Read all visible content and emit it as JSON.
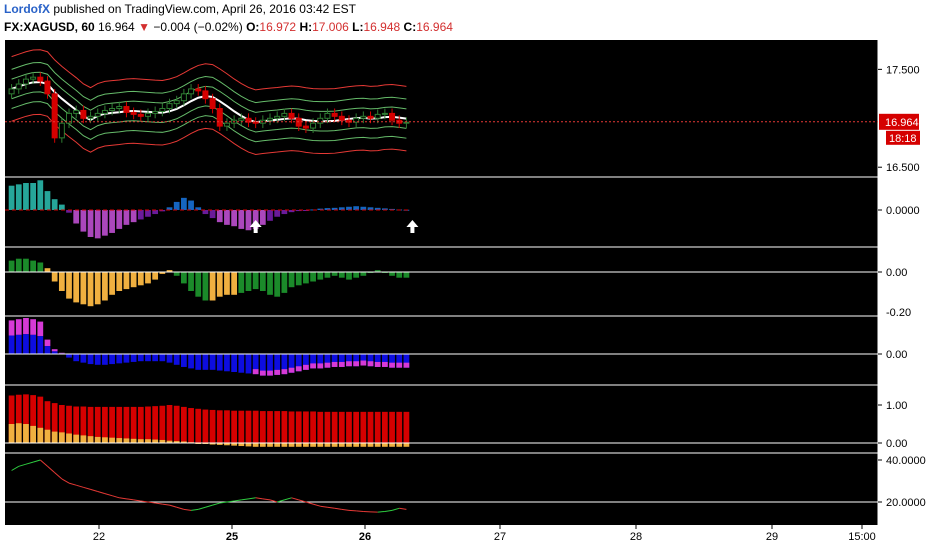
{
  "header": {
    "author": "LordofX",
    "published_text": "published on TradingView.com, April 26, 2016 03:42 EST",
    "symbol": "FX:XAGUSD, 60",
    "last": "16.964",
    "change": "−0.004 (−0.02%)",
    "open_label": "O:",
    "open": "16.972",
    "high_label": "H:",
    "high": "17.006",
    "low_label": "L:",
    "low": "16.948",
    "close_label": "C:",
    "close": "16.964"
  },
  "colors": {
    "background": "#000000",
    "up_candle": "#2e7d32",
    "down_candle": "#d50000",
    "band_outer": "#e53935",
    "band_inner": "#66bb6a",
    "band_mid": "#ffffff",
    "price_line": "#e53935",
    "hist_teal": "#26a69a",
    "hist_blue": "#1565c0",
    "hist_purple": "#ab47bc",
    "hist_dark_purple": "#6a1b9a",
    "green_bar": "#1b8a2a",
    "orange_bar": "#f0b040",
    "magenta_bar": "#d63ad6",
    "blue_bar": "#0d0de0",
    "red_bar": "#d50000",
    "line_green": "#2ecc40",
    "line_red": "#e53935"
  },
  "chart_data": {
    "type": "line",
    "instrument": "FX:XAGUSD",
    "interval": "60",
    "x_ticks": [
      "22",
      "25",
      "26",
      "27",
      "28",
      "29",
      "15:00"
    ],
    "price_panel": {
      "y_ticks": [
        "17.500",
        "16.500"
      ],
      "last_price": "16.964",
      "countdown": "18:18",
      "closes": [
        17.3,
        17.35,
        17.4,
        17.42,
        17.38,
        17.25,
        16.8,
        16.95,
        17.05,
        17.08,
        17.0,
        17.02,
        17.05,
        17.08,
        17.1,
        17.12,
        17.06,
        17.04,
        17.02,
        17.05,
        17.07,
        17.1,
        17.15,
        17.18,
        17.25,
        17.3,
        17.28,
        17.2,
        17.1,
        16.92,
        16.95,
        16.98,
        17.0,
        16.96,
        16.95,
        16.98,
        17.0,
        17.02,
        17.05,
        17.0,
        16.92,
        16.9,
        16.95,
        17.0,
        17.05,
        17.02,
        16.98,
        16.96,
        17.0,
        17.02,
        17.0,
        17.04,
        17.05,
        16.98,
        16.95,
        16.96
      ]
    },
    "osc1": {
      "y_ticks": [
        "0.0000"
      ],
      "values": [
        0.9,
        0.95,
        1.0,
        1.0,
        1.1,
        0.7,
        0.4,
        0.2,
        -0.1,
        -0.5,
        -0.8,
        -1.0,
        -1.05,
        -0.95,
        -0.85,
        -0.7,
        -0.55,
        -0.45,
        -0.35,
        -0.25,
        -0.15,
        -0.05,
        0.1,
        0.3,
        0.45,
        0.35,
        0.1,
        -0.15,
        -0.3,
        -0.45,
        -0.55,
        -0.6,
        -0.7,
        -0.75,
        -0.7,
        -0.55,
        -0.4,
        -0.25,
        -0.15,
        -0.08,
        -0.04,
        -0.02,
        0.02,
        0.05,
        0.07,
        0.08,
        0.1,
        0.12,
        0.14,
        0.12,
        0.1,
        0.08,
        0.06,
        0.04,
        0.02,
        0.01
      ]
    },
    "osc2": {
      "y_ticks": [
        "0.00",
        "-0.20"
      ],
      "values": [
        0.06,
        0.07,
        0.07,
        0.06,
        0.05,
        0.02,
        -0.05,
        -0.1,
        -0.14,
        -0.16,
        -0.17,
        -0.18,
        -0.17,
        -0.15,
        -0.12,
        -0.1,
        -0.09,
        -0.08,
        -0.07,
        -0.06,
        -0.04,
        -0.01,
        0.01,
        -0.02,
        -0.06,
        -0.1,
        -0.13,
        -0.15,
        -0.15,
        -0.13,
        -0.12,
        -0.12,
        -0.11,
        -0.1,
        -0.09,
        -0.1,
        -0.12,
        -0.13,
        -0.11,
        -0.08,
        -0.07,
        -0.06,
        -0.05,
        -0.04,
        -0.03,
        -0.02,
        -0.03,
        -0.04,
        -0.03,
        -0.02,
        0.0,
        0.01,
        0.0,
        -0.02,
        -0.03,
        -0.03
      ]
    },
    "osc3": {
      "y_ticks": [
        "0.00"
      ],
      "values": [
        1.4,
        1.45,
        1.5,
        1.45,
        1.35,
        0.6,
        0.2,
        0.05,
        -0.05,
        -0.1,
        -0.12,
        -0.14,
        -0.15,
        -0.15,
        -0.14,
        -0.13,
        -0.12,
        -0.11,
        -0.1,
        -0.1,
        -0.1,
        -0.1,
        -0.12,
        -0.15,
        -0.18,
        -0.2,
        -0.22,
        -0.22,
        -0.22,
        -0.23,
        -0.24,
        -0.25,
        -0.26,
        -0.27,
        -0.28,
        -0.3,
        -0.3,
        -0.29,
        -0.28,
        -0.26,
        -0.24,
        -0.22,
        -0.2,
        -0.2,
        -0.19,
        -0.18,
        -0.18,
        -0.17,
        -0.17,
        -0.16,
        -0.17,
        -0.18,
        -0.18,
        -0.19,
        -0.19,
        -0.19
      ]
    },
    "osc4": {
      "y_ticks": [
        "1.00",
        "0.00"
      ],
      "red_values": [
        1.25,
        1.27,
        1.28,
        1.26,
        1.22,
        1.1,
        1.05,
        1.0,
        0.98,
        0.96,
        0.96,
        0.95,
        0.95,
        0.95,
        0.95,
        0.95,
        0.95,
        0.95,
        0.95,
        0.96,
        0.97,
        0.98,
        1.0,
        0.98,
        0.95,
        0.92,
        0.9,
        0.88,
        0.87,
        0.86,
        0.86,
        0.85,
        0.85,
        0.85,
        0.85,
        0.84,
        0.84,
        0.84,
        0.84,
        0.83,
        0.83,
        0.83,
        0.83,
        0.82,
        0.82,
        0.82,
        0.82,
        0.82,
        0.82,
        0.82,
        0.82,
        0.82,
        0.82,
        0.82,
        0.82,
        0.82
      ],
      "orange_values": [
        0.5,
        0.52,
        0.5,
        0.45,
        0.4,
        0.35,
        0.3,
        0.28,
        0.25,
        0.22,
        0.2,
        0.18,
        0.16,
        0.15,
        0.14,
        0.13,
        0.12,
        0.11,
        0.1,
        0.1,
        0.09,
        0.08,
        0.06,
        0.05,
        0.04,
        0.02,
        0.0,
        -0.02,
        -0.04,
        -0.05,
        -0.06,
        -0.07,
        -0.08,
        -0.09,
        -0.1,
        -0.1,
        -0.1,
        -0.1,
        -0.1,
        -0.1,
        -0.1,
        -0.1,
        -0.1,
        -0.1,
        -0.1,
        -0.1,
        -0.1,
        -0.1,
        -0.1,
        -0.1,
        -0.1,
        -0.1,
        -0.1,
        -0.1,
        -0.1,
        -0.1
      ]
    },
    "osc5": {
      "y_ticks": [
        "40.0000",
        "20.0000"
      ],
      "values": [
        35,
        37,
        38,
        39,
        40,
        37,
        34,
        31,
        29,
        28,
        27,
        26,
        25,
        24,
        23,
        22,
        21.5,
        21,
        20.5,
        20,
        19.5,
        19,
        18.5,
        17.5,
        16.5,
        16,
        16.5,
        17.5,
        18.5,
        19.5,
        20,
        20.5,
        21,
        21.5,
        22,
        21.5,
        21,
        20,
        21,
        22,
        21,
        20,
        19,
        18,
        17.5,
        17,
        16.5,
        16,
        15.8,
        15.5,
        15.3,
        15.2,
        15.5,
        16,
        17,
        16.5
      ]
    }
  }
}
